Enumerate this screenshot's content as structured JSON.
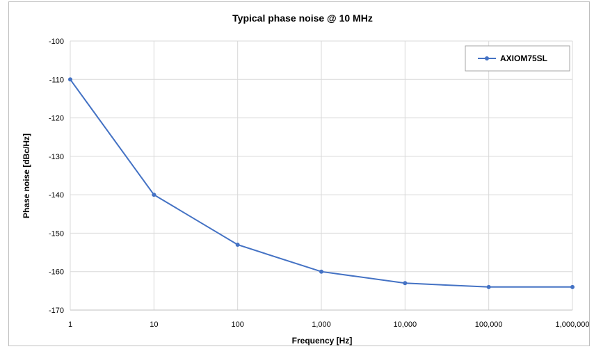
{
  "chart_data": {
    "type": "line",
    "title": "Typical phase noise @ 10 MHz",
    "xlabel": "Frequency [Hz]",
    "ylabel": "Phase noise [dBc/Hz]",
    "x_scale": "log",
    "x": [
      1,
      10,
      100,
      1000,
      10000,
      100000,
      1000000
    ],
    "x_tick_labels": [
      "1",
      "10",
      "100",
      "1,000",
      "10,000",
      "100,000",
      "1,000,000"
    ],
    "ylim": [
      -170,
      -100
    ],
    "y_ticks": [
      -100,
      -110,
      -120,
      -130,
      -140,
      -150,
      -160,
      -170
    ],
    "y_tick_labels": [
      "-100",
      "-110",
      "-120",
      "-130",
      "-140",
      "-150",
      "-160",
      "-170"
    ],
    "grid": true,
    "legend_position": "top-right",
    "series": [
      {
        "name": "AXIOM75SL",
        "values": [
          -110,
          -140,
          -153,
          -160,
          -163,
          -164,
          -164
        ],
        "color": "#4472c4"
      }
    ]
  }
}
